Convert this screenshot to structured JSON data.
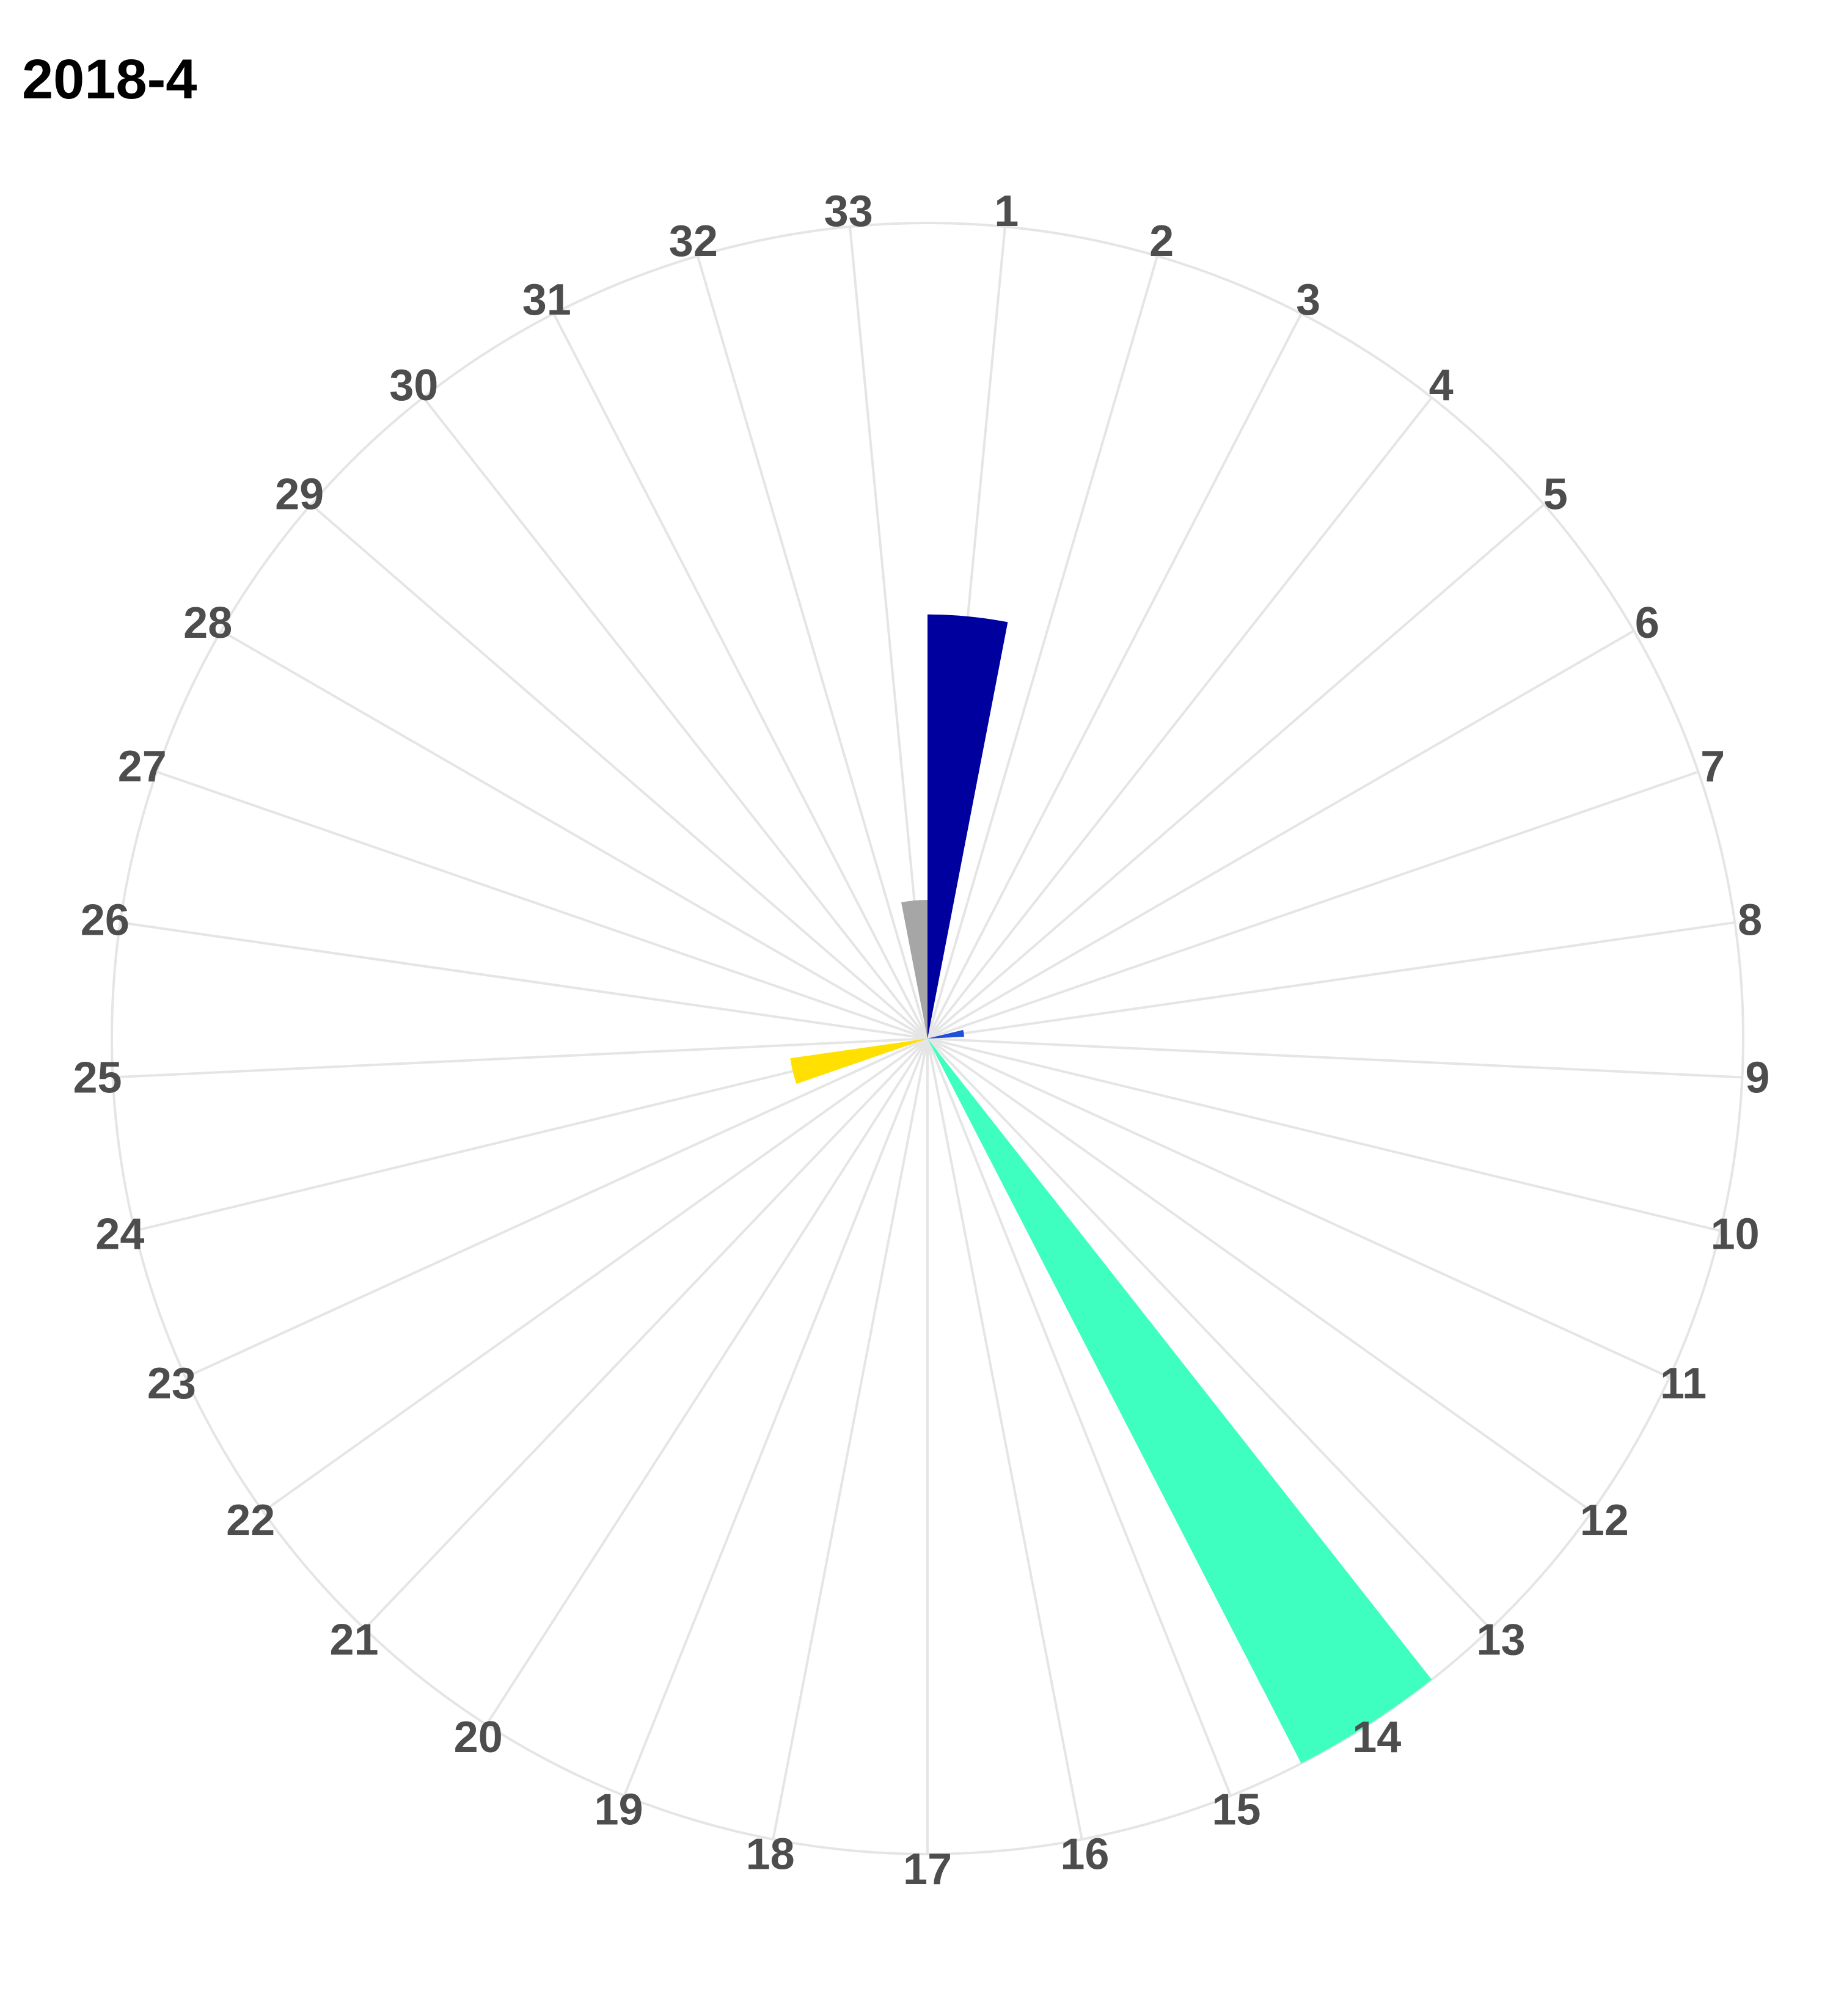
{
  "chart_data": {
    "type": "bar",
    "coord": "polar",
    "title": "2018-4",
    "xlabel": "",
    "ylabel": "",
    "categories": [
      "1",
      "2",
      "3",
      "4",
      "5",
      "6",
      "7",
      "8",
      "9",
      "10",
      "11",
      "12",
      "13",
      "14",
      "15",
      "16",
      "17",
      "18",
      "19",
      "20",
      "21",
      "22",
      "23",
      "24",
      "25",
      "26",
      "27",
      "28",
      "29",
      "30",
      "31",
      "32",
      "33"
    ],
    "values": [
      52,
      0,
      0,
      0,
      0,
      0,
      0,
      4.5,
      0,
      0,
      0,
      0,
      0,
      100,
      0,
      0,
      0,
      0,
      0,
      0,
      0,
      0,
      0,
      17,
      0,
      0,
      0,
      0,
      0,
      0,
      0,
      0,
      17
    ],
    "bar_colors": {
      "1": "#00009f",
      "8": "#1f4fd8",
      "14": "#3effbf",
      "24": "#ffe000",
      "33": "#a6a6a6"
    },
    "ylim": [
      0,
      100
    ],
    "grid": true,
    "grid_color": "#e5e5e5",
    "tick_label_color": "#4d4d4d",
    "legend": "none"
  }
}
